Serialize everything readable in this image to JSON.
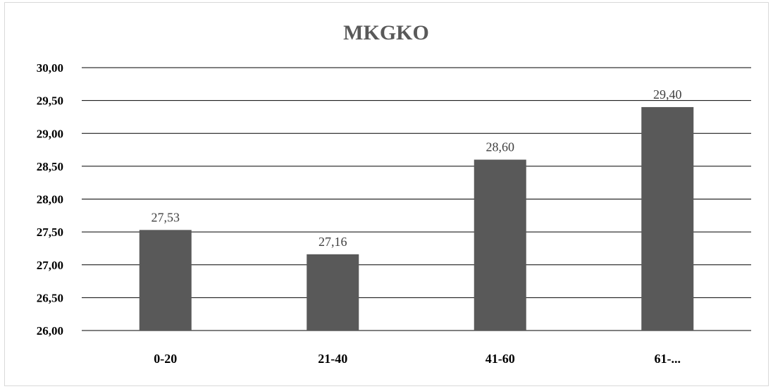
{
  "chart_data": {
    "type": "bar",
    "title": "MKGKO",
    "xlabel": "",
    "ylabel": "",
    "categories": [
      "0-20",
      "21-40",
      "41-60",
      "61-..."
    ],
    "values": [
      27.53,
      27.16,
      28.6,
      29.4
    ],
    "value_labels": [
      "27,53",
      "27,16",
      "28,60",
      "29,40"
    ],
    "ylim": [
      26.0,
      30.0
    ],
    "yticks": [
      26.0,
      26.5,
      27.0,
      27.5,
      28.0,
      28.5,
      29.0,
      29.5,
      30.0
    ],
    "ytick_labels": [
      "26,00",
      "26,50",
      "27,00",
      "27,50",
      "28,00",
      "28,50",
      "29,00",
      "29,50",
      "30,00"
    ],
    "grid": true,
    "legend": "none",
    "colors": {
      "bar": "#595959",
      "grid": "#000000",
      "title": "#595959"
    }
  }
}
